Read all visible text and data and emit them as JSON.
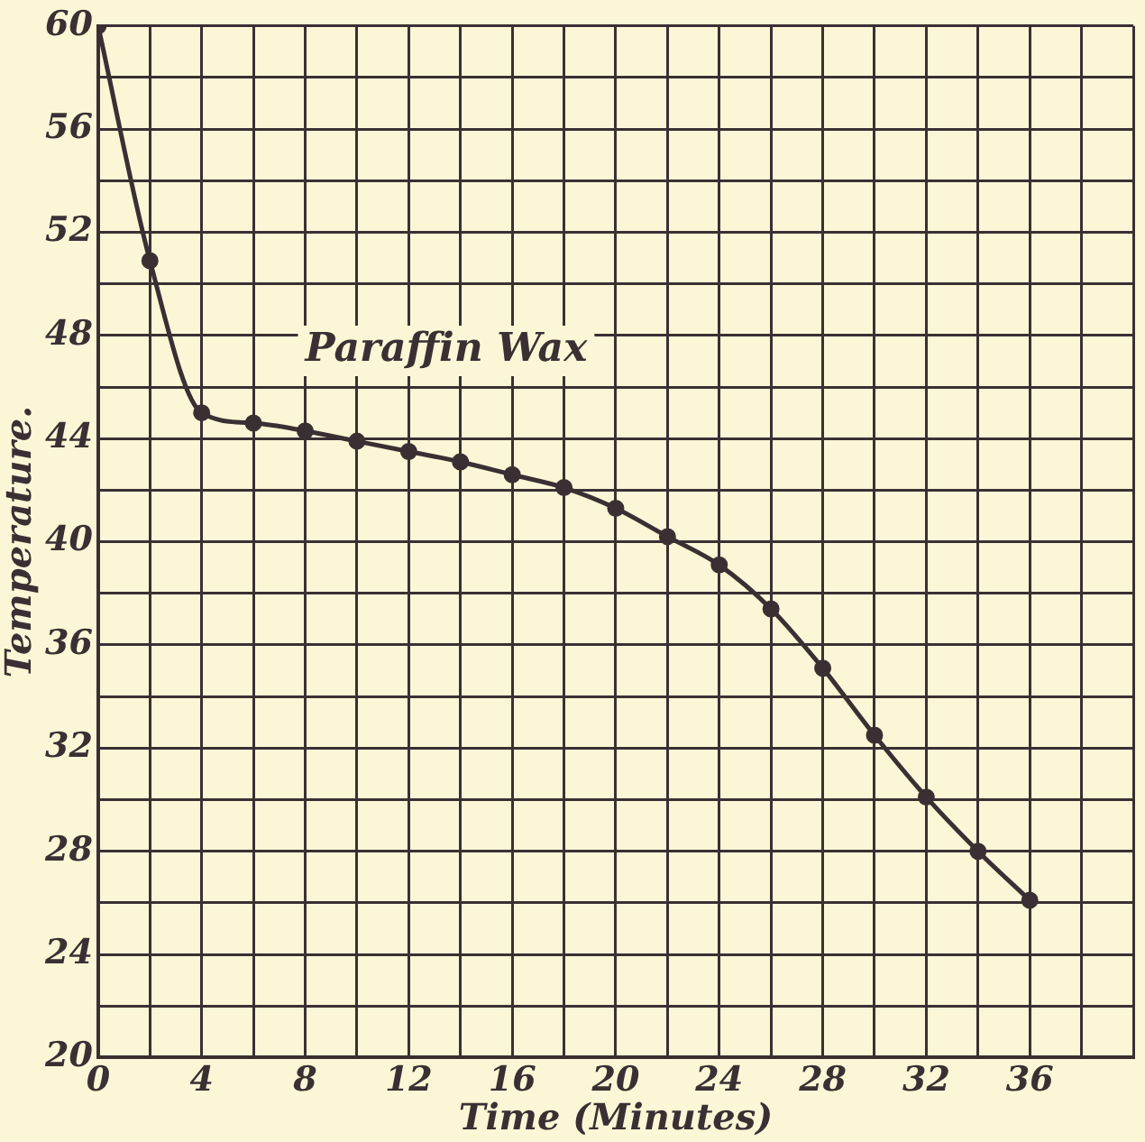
{
  "chart_data": {
    "type": "line",
    "xlabel": "Time (Minutes)",
    "ylabel": "Temperature.",
    "x": [
      0,
      2,
      4,
      6,
      8,
      10,
      12,
      14,
      16,
      18,
      20,
      22,
      24,
      26,
      28,
      30,
      32,
      34,
      36
    ],
    "series": [
      {
        "name": "Paraffin Wax",
        "color": "#3a3034",
        "values": [
          60,
          50.9,
          45,
          44.6,
          44.3,
          43.9,
          43.5,
          43.1,
          42.6,
          42.1,
          41.3,
          40.2,
          39.1,
          37.4,
          35.1,
          32.5,
          30.1,
          28,
          26.1
        ]
      }
    ],
    "xlim": [
      0,
      40
    ],
    "xticks": [
      0,
      {
        "value": 2,
        "label": null
      },
      4,
      {
        "value": 6,
        "label": null
      },
      8,
      {
        "value": 10,
        "label": null
      },
      12,
      {
        "value": 14,
        "label": null
      },
      16,
      {
        "value": 18,
        "label": null
      },
      20,
      {
        "value": 22,
        "label": null
      },
      24,
      {
        "value": 26,
        "label": null
      },
      28,
      {
        "value": 30,
        "label": null
      },
      32,
      {
        "value": 34,
        "label": null
      },
      36,
      {
        "value": 38,
        "label": null
      },
      {
        "value": 40,
        "label": null
      }
    ],
    "ylim": [
      20,
      60
    ],
    "yticks": [
      20,
      {
        "value": 22,
        "label": null
      },
      24,
      {
        "value": 26,
        "label": null
      },
      28,
      {
        "value": 30,
        "label": null
      },
      32,
      {
        "value": 34,
        "label": null
      },
      36,
      {
        "value": 38,
        "label": null
      },
      40,
      {
        "value": 42,
        "label": null
      },
      44,
      {
        "value": 46,
        "label": null
      },
      48,
      {
        "value": 50,
        "label": null
      },
      52,
      {
        "value": 54,
        "label": null
      },
      56,
      {
        "value": 58,
        "label": null
      },
      60
    ],
    "grid": true,
    "legend": false,
    "marker": "circle",
    "line_style": "solid"
  }
}
